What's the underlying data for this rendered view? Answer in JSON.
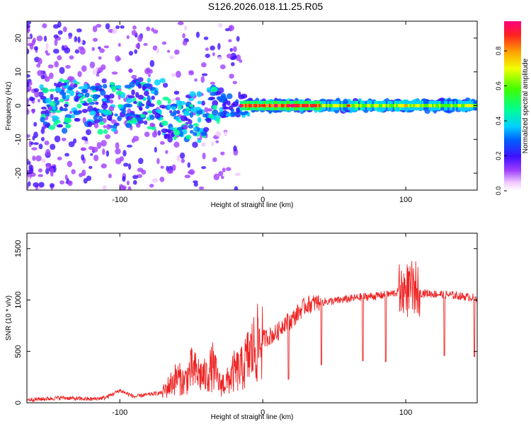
{
  "title": "S126.2026.018.11.25.R05",
  "chart_data": [
    {
      "type": "heatmap",
      "xlabel": "Height of straight line (km)",
      "ylabel": "Frequency (Hz)",
      "xlim": [
        -165,
        150
      ],
      "ylim": [
        -25,
        25
      ],
      "xticks": [
        -100,
        0,
        100
      ],
      "yticks": [
        -20,
        -10,
        0,
        10,
        20
      ],
      "colorbar": {
        "label": "Normalized spectral amplitude",
        "range": [
          0,
          0.97
        ],
        "ticks": [
          0.0,
          0.2,
          0.4,
          0.6,
          0.8
        ]
      },
      "description_points": [
        {
          "x": -150,
          "amp": 0.3
        },
        {
          "x": -100,
          "amp": 0.4
        },
        {
          "x": -50,
          "amp": 0.45
        },
        {
          "x": -15,
          "amp": 0.95
        },
        {
          "x": 0,
          "amp": 0.9
        },
        {
          "x": 20,
          "amp": 0.95
        },
        {
          "x": 60,
          "amp": 0.85
        },
        {
          "x": 100,
          "amp": 0.8
        },
        {
          "x": 150,
          "amp": 0.6
        }
      ]
    },
    {
      "type": "line",
      "xlabel": "Height of straight line (km)",
      "ylabel": "SNR (10 * v/v)",
      "xlim": [
        -165,
        150
      ],
      "ylim": [
        0,
        1650
      ],
      "xticks": [
        -100,
        0,
        100
      ],
      "yticks": [
        0,
        500,
        1000,
        1500
      ],
      "color": "#ee2222",
      "series": [
        {
          "name": "SNR",
          "x": [
            -165,
            -150,
            -140,
            -130,
            -120,
            -110,
            -100,
            -90,
            -80,
            -70,
            -60,
            -55,
            -50,
            -45,
            -40,
            -35,
            -30,
            -25,
            -20,
            -15,
            -10,
            -5,
            0,
            5,
            10,
            15,
            20,
            25,
            30,
            40,
            50,
            60,
            70,
            80,
            90,
            95,
            100,
            105,
            110,
            120,
            130,
            140,
            150
          ],
          "y": [
            30,
            40,
            50,
            40,
            35,
            50,
            120,
            60,
            80,
            100,
            250,
            200,
            320,
            280,
            250,
            350,
            180,
            200,
            300,
            320,
            450,
            550,
            620,
            650,
            680,
            780,
            800,
            880,
            950,
            980,
            990,
            1010,
            1030,
            1040,
            1060,
            1080,
            1100,
            1100,
            1070,
            1060,
            1050,
            1035,
            1020
          ]
        }
      ],
      "dips": [
        {
          "x": 18,
          "y": 230
        },
        {
          "x": 41,
          "y": 370
        },
        {
          "x": 70,
          "y": 410
        },
        {
          "x": 86,
          "y": 400
        },
        {
          "x": 127,
          "y": 460
        },
        {
          "x": 148,
          "y": 450
        }
      ]
    }
  ]
}
